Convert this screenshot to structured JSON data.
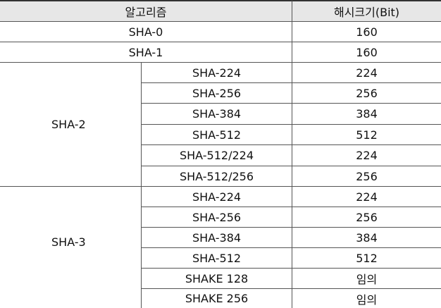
{
  "headers": {
    "algorithm": "알고리즘",
    "hash_size": "해시크기(Bit)"
  },
  "rows": [
    {
      "family": "",
      "variant": "SHA-0",
      "size": "160"
    },
    {
      "family": "",
      "variant": "SHA-1",
      "size": "160"
    },
    {
      "family": "SHA-2",
      "variant": "SHA-224",
      "size": "224"
    },
    {
      "family": "SHA-2",
      "variant": "SHA-256",
      "size": "256"
    },
    {
      "family": "SHA-2",
      "variant": "SHA-384",
      "size": "384"
    },
    {
      "family": "SHA-2",
      "variant": "SHA-512",
      "size": "512"
    },
    {
      "family": "SHA-2",
      "variant": "SHA-512/224",
      "size": "224"
    },
    {
      "family": "SHA-2",
      "variant": "SHA-512/256",
      "size": "256"
    },
    {
      "family": "SHA-3",
      "variant": "SHA-224",
      "size": "224"
    },
    {
      "family": "SHA-3",
      "variant": "SHA-256",
      "size": "256"
    },
    {
      "family": "SHA-3",
      "variant": "SHA-384",
      "size": "384"
    },
    {
      "family": "SHA-3",
      "variant": "SHA-512",
      "size": "512"
    },
    {
      "family": "SHA-3",
      "variant": "SHAKE 128",
      "size": "임의"
    },
    {
      "family": "SHA-3",
      "variant": "SHAKE 256",
      "size": "임의"
    }
  ]
}
